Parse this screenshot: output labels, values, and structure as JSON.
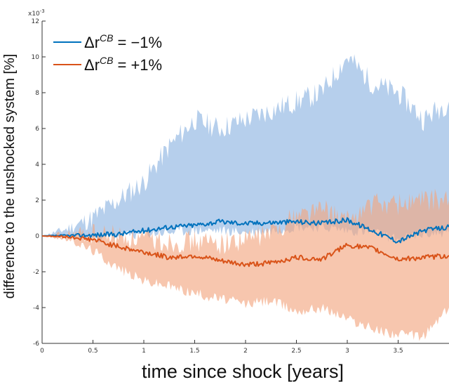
{
  "chart_data": {
    "type": "line",
    "xlabel": "time since shock [years]",
    "ylabel": "difference to the unshocked system [%]",
    "y_exponent_label": "x10^{-3}",
    "xlim": [
      0,
      4.0
    ],
    "ylim": [
      -6,
      12
    ],
    "x_ticks": [
      0,
      0.5,
      1,
      1.5,
      2,
      2.5,
      3,
      3.5
    ],
    "x_tick_labels": [
      "0",
      "0.5",
      "1",
      "1.5",
      "2",
      "2.5",
      "3",
      "3.5"
    ],
    "y_ticks": [
      -6,
      -4,
      -2,
      0,
      2,
      4,
      6,
      8,
      10,
      12
    ],
    "y_tick_labels": [
      "-6",
      "-4",
      "-2",
      "0",
      "2",
      "4",
      "6",
      "8",
      "10",
      "12"
    ],
    "legend_position": "top-left",
    "colors": {
      "series_neg": "#0072BD",
      "series_pos": "#D95319",
      "band_neg": "#9DBFE6",
      "band_pos": "#F2A883"
    },
    "x": [
      0,
      0.25,
      0.5,
      0.75,
      1.0,
      1.25,
      1.5,
      1.75,
      2.0,
      2.25,
      2.5,
      2.75,
      3.0,
      3.25,
      3.5,
      3.75,
      4.0
    ],
    "series": [
      {
        "name": "Δr^{CB} = −1%",
        "legend_lhs": "Δr",
        "legend_sup": "CB",
        "legend_rhs": "= −1%",
        "values": [
          0,
          0.02,
          0.05,
          0.1,
          0.3,
          0.5,
          0.6,
          0.8,
          0.7,
          0.75,
          0.8,
          0.7,
          0.9,
          0.3,
          -0.3,
          0.3,
          0.5
        ],
        "band_upper": [
          0,
          0.4,
          1.0,
          2.0,
          3.0,
          5.0,
          6.5,
          6.0,
          6.5,
          7.0,
          7.5,
          8.0,
          10.0,
          8.5,
          8.0,
          6.5,
          7.5
        ],
        "band_lower": [
          0,
          -0.05,
          -0.1,
          0.0,
          0.1,
          0.2,
          0.3,
          0.3,
          0.2,
          0.3,
          0.5,
          0.5,
          0.3,
          0.2,
          -0.2,
          0.1,
          0.2
        ]
      },
      {
        "name": "Δr^{CB} = +1%",
        "legend_lhs": "Δr",
        "legend_sup": "CB",
        "legend_rhs": "= +1%",
        "values": [
          0,
          -0.05,
          -0.2,
          -0.6,
          -0.9,
          -1.2,
          -1.1,
          -1.4,
          -1.6,
          -1.5,
          -1.2,
          -1.3,
          -0.5,
          -0.7,
          -1.3,
          -1.2,
          -1.1
        ],
        "band_upper": [
          0,
          0.05,
          0.1,
          0.0,
          -0.2,
          -0.3,
          -0.3,
          -0.4,
          -0.2,
          0.2,
          1.2,
          1.5,
          0.8,
          1.8,
          1.8,
          2.0,
          2.0
        ],
        "band_lower": [
          0,
          -0.2,
          -0.8,
          -1.8,
          -2.5,
          -2.8,
          -3.2,
          -3.5,
          -3.8,
          -3.6,
          -4.2,
          -4.0,
          -4.6,
          -5.2,
          -5.5,
          -5.6,
          -4.0
        ]
      }
    ]
  }
}
